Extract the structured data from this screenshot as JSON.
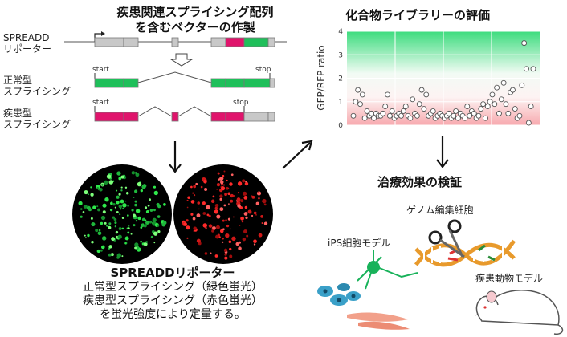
{
  "construct": {
    "title_line1": "疾患関連スプライシング配列",
    "title_line2": "を含むベクターの作製",
    "reporter_label_line1": "SPREADD",
    "reporter_label_line2": "リポーター",
    "normal_label_line1": "正常型",
    "normal_label_line2": "スプライシング",
    "disease_label_line1": "疾患型",
    "disease_label_line2": "スプライシング",
    "start": "start",
    "stop": "stop",
    "colors": {
      "green": "#1fbf5a",
      "magenta": "#e0146c",
      "grey": "#c8c8c8"
    }
  },
  "microscopy": {
    "caption_title": "SPREADDリポーター",
    "caption_line1": "正常型スプライシング（緑色蛍光）",
    "caption_line2": "疾患型スプライシング（赤色蛍光）",
    "caption_line3": "を蛍光強度により定量する。"
  },
  "screen": {
    "title": "化合物ライブラリーの評価"
  },
  "chart_data": {
    "type": "scatter",
    "ylabel": "GFP/RFP ratio",
    "ylim": [
      0,
      4
    ],
    "yticks": [
      0,
      1,
      2,
      3,
      4
    ],
    "xlabel": "",
    "x": [
      1,
      2,
      3,
      4,
      5,
      6,
      7,
      8,
      9,
      10,
      11,
      12,
      13,
      14,
      15,
      16,
      17,
      18,
      19,
      20,
      21,
      22,
      23,
      24,
      25,
      26,
      27,
      28,
      29,
      30,
      31,
      32,
      33,
      34,
      35,
      36,
      37,
      38,
      39,
      40,
      41,
      42,
      43,
      44,
      45,
      46,
      47,
      48,
      49,
      50,
      51,
      52,
      53,
      54,
      55,
      56,
      57,
      58,
      59,
      60,
      61,
      62,
      63,
      64,
      65,
      66,
      67,
      68,
      69,
      70,
      71,
      72,
      73,
      74,
      75,
      76,
      77,
      78,
      79,
      80
    ],
    "y": [
      0.4,
      1.0,
      1.5,
      0.9,
      1.3,
      0.3,
      0.6,
      0.4,
      0.5,
      0.3,
      0.5,
      0.4,
      0.4,
      0.5,
      0.8,
      1.3,
      0.4,
      0.6,
      0.3,
      0.4,
      0.5,
      0.4,
      0.6,
      0.8,
      0.4,
      0.3,
      1.1,
      0.5,
      0.4,
      0.9,
      1.5,
      0.7,
      1.3,
      0.4,
      0.5,
      0.6,
      0.3,
      0.4,
      0.5,
      0.4,
      0.3,
      0.4,
      0.5,
      0.3,
      0.4,
      0.6,
      0.3,
      0.5,
      0.4,
      0.3,
      0.8,
      0.4,
      0.6,
      0.5,
      0.3,
      0.4,
      0.7,
      0.9,
      0.3,
      0.8,
      1.0,
      1.3,
      0.9,
      1.6,
      0.5,
      1.1,
      1.8,
      0.9,
      0.5,
      1.4,
      1.5,
      0.7,
      0.3,
      0.4,
      1.7,
      3.5,
      2.4,
      0.1,
      0.8,
      2.4
    ],
    "background": "gradient pink (low) to green (high)",
    "grid": true
  },
  "validation": {
    "title": "治療効果の検証",
    "genome_label": "ゲノム編集細胞",
    "ips_label": "iPS細胞モデル",
    "animal_label": "疾患動物モデル"
  }
}
